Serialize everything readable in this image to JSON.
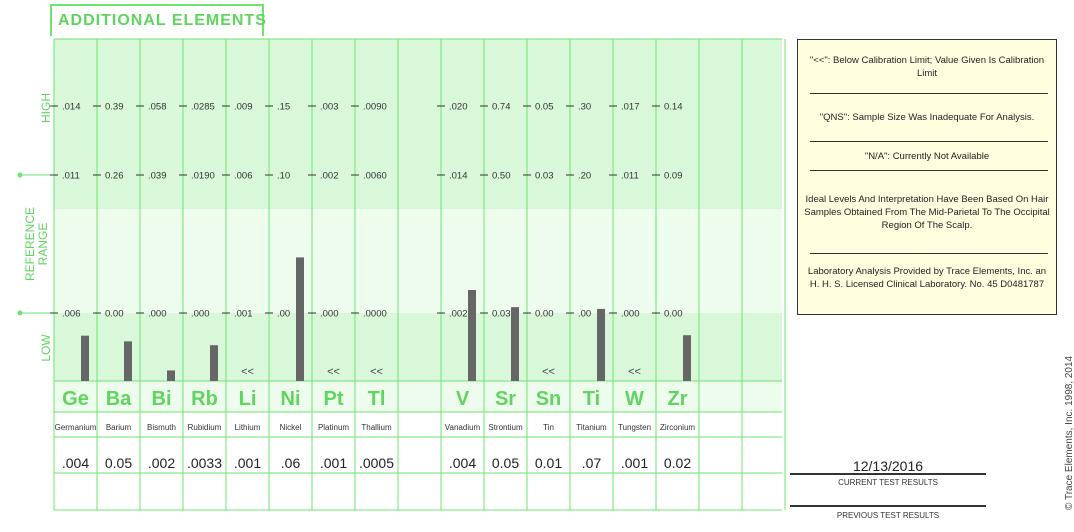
{
  "title": "ADDITIONAL ELEMENTS",
  "axis": {
    "high": "HIGH",
    "reference_range": [
      "REFERENCE",
      "RANGE"
    ],
    "low": "LOW"
  },
  "notes": [
    "\"<<\": Below Calibration Limit; Value Given Is Calibration Limit",
    "\"QNS\": Sample Size Was Inadequate For Analysis.",
    "\"N/A\": Currently Not Available",
    "Ideal Levels And Interpretation Have Been Based On Hair Samples Obtained From The Mid-Parietal To The Occipital Region Of The Scalp.",
    "Laboratory Analysis Provided by Trace Elements, Inc. an H. H. S. Licensed Clinical Laboratory.  No. 45 D0481787"
  ],
  "copyright": "© Trace Elements, Inc. 1998, 2014",
  "results": {
    "date": "12/13/2016",
    "current_label": "CURRENT TEST RESULTS",
    "previous_label": "PREVIOUS TEST RESULTS"
  },
  "colors": {
    "green_line": "#6ee36e",
    "band_dark": "#d9f7d9",
    "band_light": "#eefcee",
    "symbol": "#5fd55f",
    "bar": "#666666"
  },
  "chart_data": {
    "type": "bar",
    "levels": [
      "LOW",
      "REFERENCE RANGE",
      "HIGH"
    ],
    "categories": [
      "Ge",
      "Ba",
      "Bi",
      "Rb",
      "Li",
      "Ni",
      "Pt",
      "Tl",
      "V",
      "Sr",
      "Sn",
      "Ti",
      "W",
      "Zr"
    ],
    "names": [
      "Germanium",
      "Barium",
      "Bismuth",
      "Rubidium",
      "Lithium",
      "Nickel",
      "Platinum",
      "Thallium",
      "Vanadium",
      "Strontium",
      "Tin",
      "Titanium",
      "Tungsten",
      "Zirconium"
    ],
    "columns": [
      0,
      1,
      2,
      3,
      4,
      5,
      6,
      7,
      9,
      10,
      11,
      12,
      13,
      14
    ],
    "scale_high": [
      ".014",
      "0.39",
      ".058",
      ".0285",
      ".009",
      ".15",
      ".003",
      ".0090",
      ".020",
      "0.74",
      "0.05",
      ".30",
      ".017",
      "0.14"
    ],
    "scale_upper_ref": [
      ".011",
      "0.26",
      ".039",
      ".0190",
      ".006",
      ".10",
      ".002",
      ".0060",
      ".014",
      "0.50",
      "0.03",
      ".20",
      ".011",
      "0.09"
    ],
    "scale_lower_ref": [
      ".006",
      "0.00",
      ".000",
      ".000",
      ".001",
      ".00",
      ".000",
      ".0000",
      ".002",
      "0.03",
      "0.00",
      ".00",
      ".000",
      "0.00"
    ],
    "result_labels": [
      ".004",
      "0.05",
      ".002",
      ".0033",
      ".001",
      ".06",
      ".001",
      ".0005",
      ".004",
      "0.05",
      "0.01",
      ".07",
      ".001",
      "0.02"
    ],
    "values": [
      0.004,
      0.05,
      0.002,
      0.0033,
      0.001,
      0.06,
      0.001,
      0.0005,
      0.004,
      0.05,
      0.01,
      0.07,
      0.001,
      0.02
    ],
    "below_limit_marker": "<<",
    "below_limit": [
      false,
      false,
      false,
      false,
      true,
      false,
      true,
      true,
      false,
      false,
      true,
      false,
      true,
      false
    ]
  }
}
